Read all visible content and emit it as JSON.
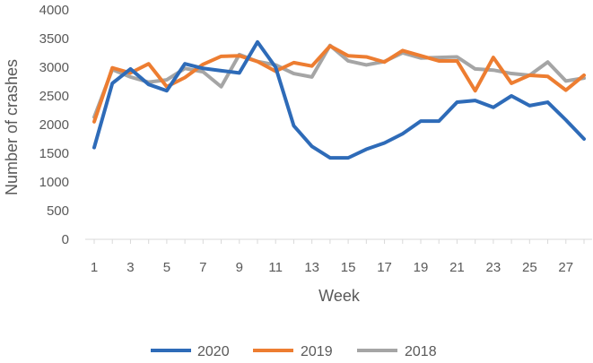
{
  "chart_data": {
    "type": "line",
    "title": "",
    "xlabel": "Week",
    "ylabel": "Number of crashes",
    "ylim": [
      0,
      4000
    ],
    "y_ticks": [
      0,
      500,
      1000,
      1500,
      2000,
      2500,
      3000,
      3500,
      4000
    ],
    "x": [
      1,
      2,
      3,
      4,
      5,
      6,
      7,
      8,
      9,
      10,
      11,
      12,
      13,
      14,
      15,
      16,
      17,
      18,
      19,
      20,
      21,
      22,
      23,
      24,
      25,
      26,
      27,
      28
    ],
    "x_tick_labels": [
      "1",
      "3",
      "5",
      "7",
      "9",
      "11",
      "13",
      "15",
      "17",
      "19",
      "21",
      "23",
      "25",
      "27"
    ],
    "grid": false,
    "legend_position": "bottom",
    "series": [
      {
        "name": "2020",
        "color": "#2e6bb8",
        "values": [
          1600,
          2720,
          2970,
          2700,
          2590,
          3060,
          2980,
          2940,
          2900,
          3440,
          3000,
          1980,
          1620,
          1420,
          1420,
          1570,
          1680,
          1840,
          2060,
          2060,
          2390,
          2420,
          2300,
          2500,
          2330,
          2390,
          2080,
          1750
        ]
      },
      {
        "name": "2019",
        "color": "#ed7d31",
        "values": [
          2050,
          2990,
          2900,
          3060,
          2660,
          2820,
          3050,
          3190,
          3200,
          3100,
          2930,
          3080,
          3020,
          3370,
          3200,
          3180,
          3090,
          3290,
          3200,
          3110,
          3110,
          2590,
          3170,
          2720,
          2860,
          2840,
          2600,
          2860
        ]
      },
      {
        "name": "2018",
        "color": "#a5a5a5",
        "values": [
          2130,
          2960,
          2830,
          2740,
          2780,
          2980,
          2920,
          2660,
          3220,
          3100,
          3040,
          2890,
          2830,
          3380,
          3110,
          3040,
          3100,
          3250,
          3160,
          3170,
          3180,
          2970,
          2950,
          2890,
          2860,
          3090,
          2760,
          2810
        ]
      }
    ]
  }
}
